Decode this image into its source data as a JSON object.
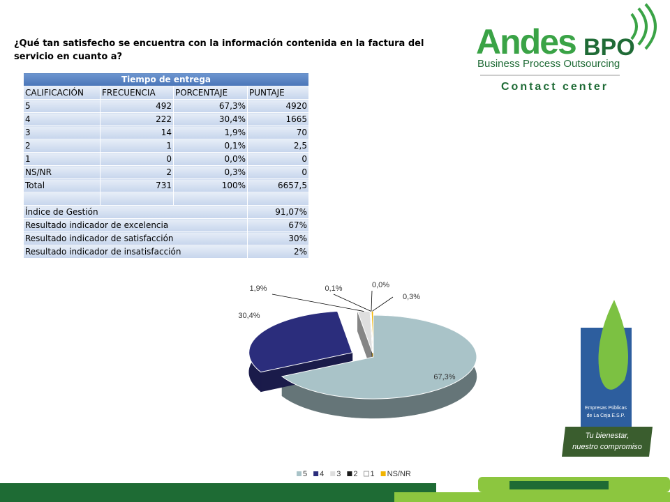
{
  "question": "¿Qué tan satisfecho se encuentra con la información contenida en la factura del servicio en cuanto a?",
  "logo": {
    "brand": "Andes",
    "brand_suffix": "BPO",
    "tagline": "Business Process Outsourcing",
    "subtitle": "Contact center"
  },
  "table": {
    "title": "Tiempo de entrega",
    "header": [
      "CALIFICACIÓN",
      "FRECUENCIA",
      "PORCENTAJE",
      "PUNTAJE"
    ],
    "rows": [
      [
        "5",
        "492",
        "67,3%",
        "4920"
      ],
      [
        "4",
        "222",
        "30,4%",
        "1665"
      ],
      [
        "3",
        "14",
        "1,9%",
        "70"
      ],
      [
        "2",
        "1",
        "0,1%",
        "2,5"
      ],
      [
        "1",
        "0",
        "0,0%",
        "0"
      ],
      [
        "NS/NR",
        "2",
        "0,3%",
        "0"
      ],
      [
        "Total",
        "731",
        "100%",
        "6657,5"
      ]
    ],
    "summary": [
      [
        "Índice de Gestión",
        "91,07%"
      ],
      [
        "Resultado indicador de excelencia",
        "67%"
      ],
      [
        "Resultado indicador de satisfacción",
        "30%"
      ],
      [
        "Resultado indicador de insatisfacción",
        "2%"
      ]
    ]
  },
  "chart_data": {
    "type": "pie",
    "categories": [
      "5",
      "4",
      "3",
      "2",
      "1",
      "NS/NR"
    ],
    "values": [
      67.3,
      30.4,
      1.9,
      0.1,
      0.0,
      0.3
    ],
    "value_labels": [
      "67,3%",
      "30,4%",
      "1,9%",
      "0,1%",
      "0,0%",
      "0,3%"
    ],
    "colors": [
      "#a9c3c8",
      "#2b2d7c",
      "#dedede",
      "#1a1a1a",
      "#ffffff",
      "#f2b400"
    ],
    "legend": "bottom"
  },
  "sponsor": {
    "name_1": "Empresas Públicas",
    "name_2": "de La Ceja E.S.P.",
    "slogan_1": "Tu bienestar,",
    "slogan_2": "nuestro compromiso"
  }
}
